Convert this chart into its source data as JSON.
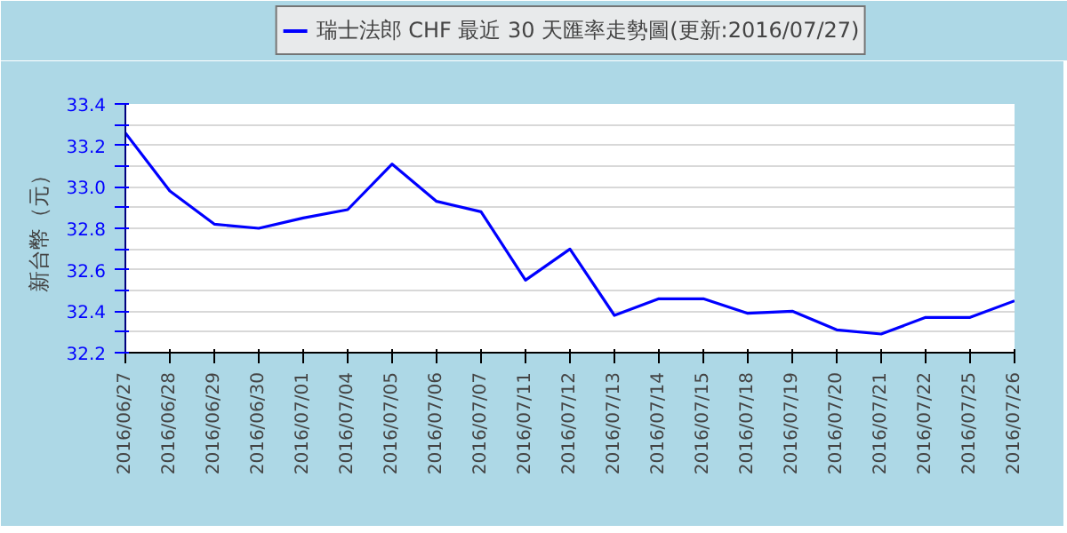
{
  "chart_data": {
    "type": "line",
    "ylabel": "新台幣（元）",
    "categories": [
      "2016/06/27",
      "2016/06/28",
      "2016/06/29",
      "2016/06/30",
      "2016/07/01",
      "2016/07/04",
      "2016/07/05",
      "2016/07/06",
      "2016/07/07",
      "2016/07/11",
      "2016/07/12",
      "2016/07/13",
      "2016/07/14",
      "2016/07/15",
      "2016/07/18",
      "2016/07/19",
      "2016/07/20",
      "2016/07/21",
      "2016/07/22",
      "2016/07/25",
      "2016/07/26"
    ],
    "series": [
      {
        "name": "瑞士法郎 CHF 最近 30 天匯率走勢圖(更新:2016/07/27)",
        "color": "#0000ff",
        "values": [
          33.26,
          32.98,
          32.82,
          32.8,
          32.85,
          32.89,
          33.11,
          32.93,
          32.88,
          32.55,
          32.7,
          32.38,
          32.46,
          32.46,
          32.39,
          32.4,
          32.31,
          32.29,
          32.37,
          32.37,
          32.45
        ]
      }
    ],
    "ylim": [
      32.2,
      33.4
    ],
    "yticks": [
      32.2,
      {
        "value": 32.3,
        "label": null
      },
      32.4,
      {
        "value": 32.5,
        "label": null
      },
      32.6,
      {
        "value": 32.7,
        "label": null
      },
      32.8,
      {
        "value": 32.9,
        "label": null
      },
      "33.0",
      {
        "value": 33.1,
        "label": null
      },
      33.2,
      {
        "value": 33.3,
        "label": null
      },
      33.4
    ],
    "grid": "y",
    "legend": "top",
    "marker": "none",
    "line_style": "solid"
  }
}
